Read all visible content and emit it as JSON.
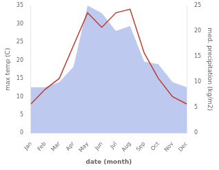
{
  "chart_data": {
    "type": "line",
    "xlabel": "date (month)",
    "ylabel": "max temp (C)",
    "y2label": "med. precipitation (kg/m2)",
    "categories": [
      "Jan",
      "Feb",
      "Mar",
      "Apr",
      "May",
      "Jun",
      "Jul",
      "Aug",
      "Sep",
      "Oct",
      "Nov",
      "Dec"
    ],
    "series": [
      {
        "type": "area",
        "axis": "y2",
        "color": "#bdc9ee",
        "values": [
          9,
          9,
          10,
          13,
          25,
          23.5,
          20,
          21,
          14,
          13.5,
          10,
          9
        ]
      },
      {
        "type": "line",
        "color": "#c0392b",
        "values": [
          8,
          12,
          15,
          24,
          33,
          29,
          33,
          34,
          22,
          15,
          10,
          8
        ]
      }
    ],
    "ylim": [
      0,
      35
    ],
    "yticks": [
      0,
      5,
      10,
      15,
      20,
      25,
      30,
      35
    ],
    "y2lim": [
      0,
      25
    ],
    "y2ticks": [
      0,
      5,
      10,
      15,
      20,
      25
    ],
    "grid": false
  }
}
